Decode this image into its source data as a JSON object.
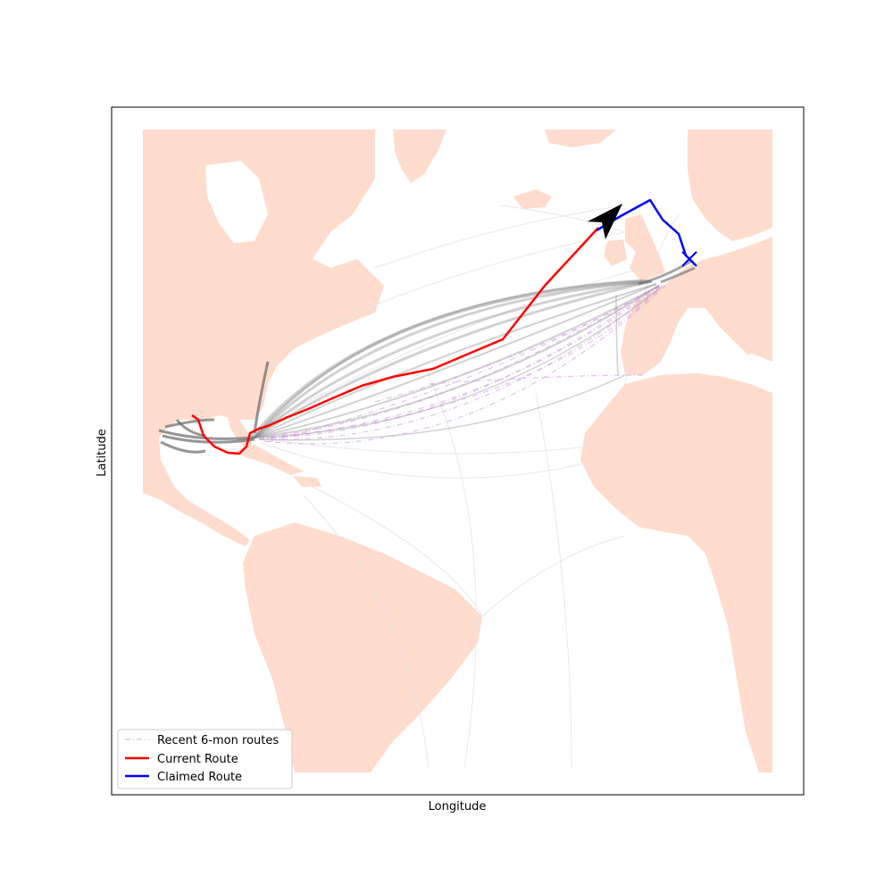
{
  "axes": {
    "xlabel": "Longitude",
    "ylabel": "Latitude"
  },
  "legend": {
    "placement": "lower-left",
    "items": [
      {
        "label": "Recent 6-mon routes",
        "color": "#dcc8e6",
        "style": "dash-dot"
      },
      {
        "label": "Current Route",
        "color": "#ff0000",
        "style": "solid"
      },
      {
        "label": "Claimed Route",
        "color": "#0000ff",
        "style": "solid"
      }
    ]
  },
  "colors": {
    "land": "#ffdccd",
    "ocean": "#ffffff",
    "historical_traffic": "#777777",
    "recent_routes": "#c890d8",
    "current_route": "#ff0000",
    "claimed_route": "#0000ff",
    "vessel_marker": "#000000"
  },
  "markers": {
    "vessel_position": "arrow-icon",
    "claimed_endpoint": "x-mark-icon"
  }
}
